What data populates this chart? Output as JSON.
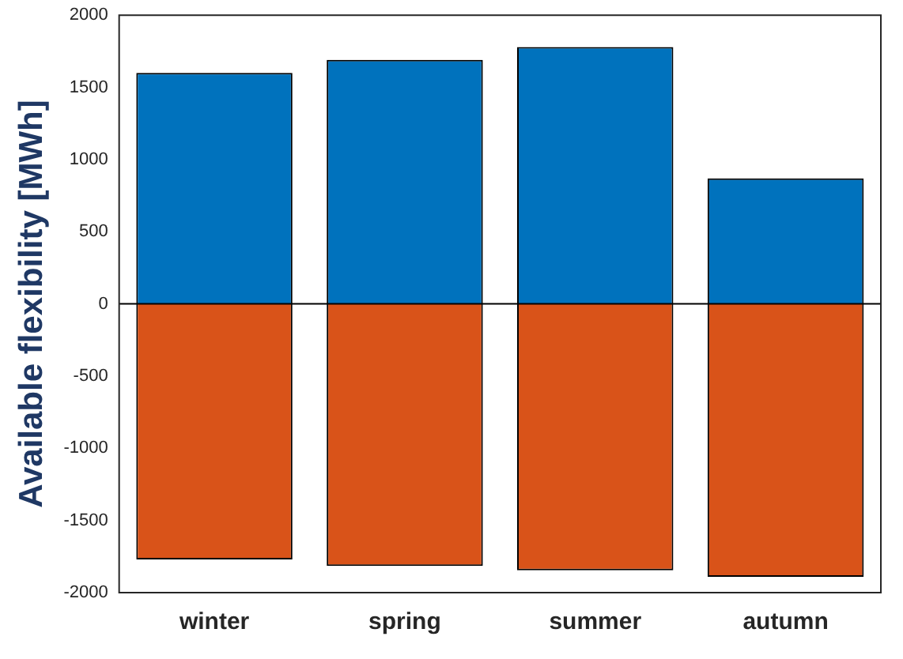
{
  "chart_data": {
    "type": "bar",
    "ylabel": "Available flexibility [MWh]",
    "categories": [
      "winter",
      "spring",
      "summer",
      "autumn"
    ],
    "stacked": true,
    "series": [
      {
        "color": "#0072bd",
        "values": [
          1600,
          1690,
          1780,
          870
        ]
      },
      {
        "color": "#d95319",
        "values": [
          -1770,
          -1815,
          -1845,
          -1890
        ]
      }
    ],
    "ylim": [
      -2000,
      2000
    ],
    "yticks": [
      -2000,
      -1500,
      -1000,
      -500,
      0,
      500,
      1000,
      1500,
      2000
    ],
    "grid": false,
    "legend": false,
    "ref_lines": [
      {
        "axis": "y",
        "value": 0,
        "color": "#000000"
      }
    ]
  }
}
